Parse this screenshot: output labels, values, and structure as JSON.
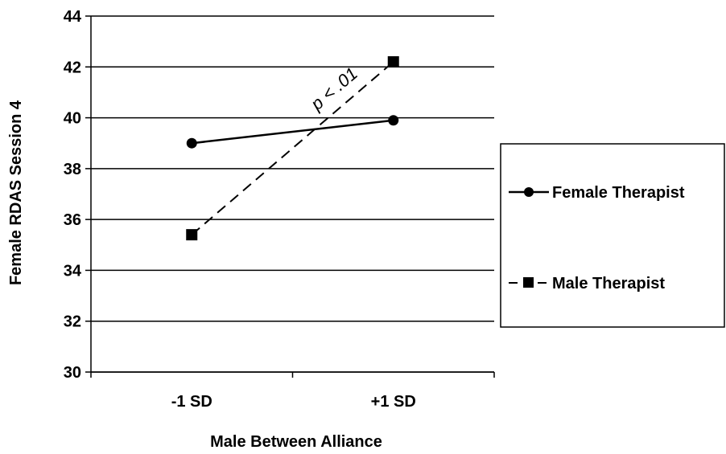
{
  "chart_data": {
    "type": "line",
    "categories": [
      "-1 SD",
      "+1 SD"
    ],
    "xlabel": "Male Between Alliance",
    "ylabel": "Female RDAS Session 4",
    "ylim": [
      30,
      44
    ],
    "yticks": [
      "30",
      "32",
      "34",
      "36",
      "38",
      "40",
      "42",
      "44"
    ],
    "grid": "horizontal",
    "legend_position": "right",
    "series": [
      {
        "name": "Female Therapist",
        "values": [
          39.0,
          39.9
        ],
        "marker": "circle",
        "line_style": "solid",
        "color": "#000000"
      },
      {
        "name": "Male Therapist",
        "values": [
          35.4,
          42.2
        ],
        "marker": "square",
        "line_style": "dashed",
        "color": "#000000"
      }
    ],
    "annotation": "p < .01"
  }
}
